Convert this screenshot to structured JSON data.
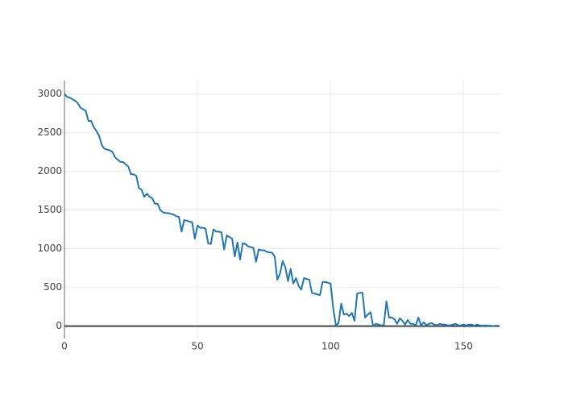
{
  "chart_data": {
    "type": "line",
    "color": "#1f77b4",
    "grid": true,
    "x": [
      0,
      1,
      2,
      3,
      4,
      5,
      6,
      7,
      8,
      9,
      10,
      11,
      12,
      13,
      14,
      15,
      16,
      17,
      18,
      19,
      20,
      21,
      22,
      23,
      24,
      25,
      26,
      27,
      28,
      29,
      30,
      31,
      32,
      33,
      34,
      35,
      36,
      37,
      38,
      39,
      40,
      41,
      42,
      43,
      44,
      45,
      46,
      47,
      48,
      49,
      50,
      51,
      52,
      53,
      54,
      55,
      56,
      57,
      58,
      59,
      60,
      61,
      62,
      63,
      64,
      65,
      66,
      67,
      68,
      69,
      70,
      71,
      72,
      73,
      74,
      75,
      76,
      77,
      78,
      79,
      80,
      81,
      82,
      83,
      84,
      85,
      86,
      87,
      88,
      89,
      90,
      91,
      92,
      93,
      94,
      95,
      96,
      97,
      98,
      99,
      100,
      101,
      102,
      103,
      104,
      105,
      106,
      107,
      108,
      109,
      110,
      111,
      112,
      113,
      114,
      115,
      116,
      117,
      118,
      119,
      120,
      121,
      122,
      123,
      124,
      125,
      126,
      127,
      128,
      129,
      130,
      131,
      132,
      133,
      134,
      135,
      136,
      137,
      138,
      139,
      140,
      141,
      142,
      143,
      144,
      145,
      146,
      147,
      148,
      149,
      150,
      151,
      152,
      153,
      154,
      155,
      156,
      157,
      158,
      159,
      160,
      161,
      162,
      163
    ],
    "values": [
      3000,
      2960,
      2950,
      2930,
      2910,
      2880,
      2820,
      2800,
      2780,
      2650,
      2650,
      2570,
      2520,
      2460,
      2340,
      2290,
      2280,
      2270,
      2250,
      2180,
      2150,
      2120,
      2120,
      2090,
      2060,
      1960,
      1960,
      1940,
      1780,
      1760,
      1670,
      1710,
      1670,
      1650,
      1580,
      1580,
      1500,
      1470,
      1460,
      1460,
      1450,
      1440,
      1420,
      1410,
      1220,
      1370,
      1360,
      1350,
      1340,
      1130,
      1300,
      1270,
      1270,
      1260,
      1070,
      1060,
      1250,
      1220,
      1220,
      1210,
      990,
      1170,
      1150,
      1130,
      900,
      1080,
      860,
      1070,
      1060,
      1030,
      1020,
      1010,
      830,
      990,
      980,
      980,
      960,
      950,
      950,
      900,
      600,
      680,
      840,
      760,
      580,
      740,
      550,
      620,
      520,
      470,
      620,
      610,
      600,
      430,
      420,
      410,
      400,
      570,
      570,
      560,
      550,
      230,
      10,
      40,
      290,
      150,
      160,
      130,
      170,
      70,
      420,
      430,
      430,
      110,
      150,
      180,
      0,
      30,
      20,
      10,
      10,
      320,
      110,
      110,
      90,
      30,
      100,
      70,
      20,
      80,
      30,
      30,
      10,
      110,
      10,
      50,
      10,
      30,
      40,
      20,
      10,
      30,
      20,
      20,
      10,
      10,
      20,
      30,
      10,
      10,
      20,
      10,
      20,
      20,
      5,
      20,
      10,
      5,
      10,
      5,
      5,
      0,
      5,
      5
    ],
    "xlim": [
      0,
      163.5
    ],
    "ylim": [
      -160,
      3170
    ],
    "xticks": [
      0,
      50,
      100,
      150
    ],
    "yticks": [
      0,
      500,
      1000,
      1500,
      2000,
      2500,
      3000
    ]
  }
}
